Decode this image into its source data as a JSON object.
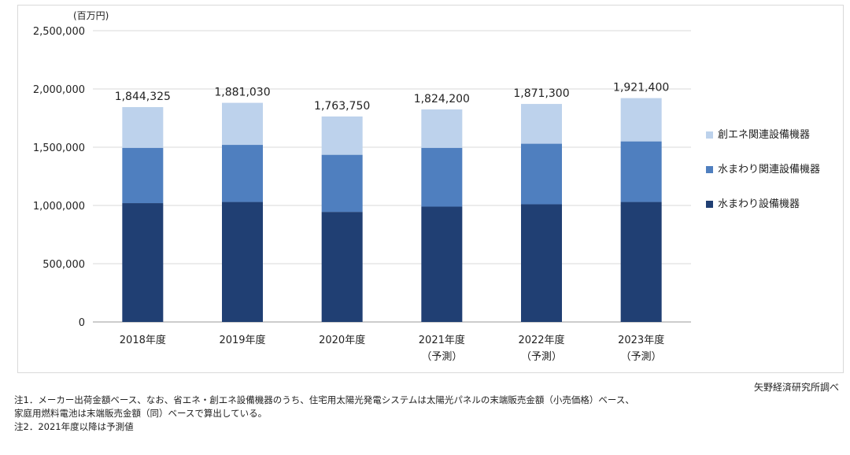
{
  "chart_data": {
    "type": "bar",
    "stacked": true,
    "unit_label": "(百万円)",
    "categories": [
      {
        "line1": "2018年度",
        "line2": ""
      },
      {
        "line1": "2019年度",
        "line2": ""
      },
      {
        "line1": "2020年度",
        "line2": ""
      },
      {
        "line1": "2021年度",
        "line2": "（予測）"
      },
      {
        "line1": "2022年度",
        "line2": "（予測）"
      },
      {
        "line1": "2023年度",
        "line2": "（予測）"
      }
    ],
    "series": [
      {
        "name": "水まわり設備機器",
        "color": "#203f73",
        "values": [
          1020000,
          1030000,
          945000,
          990000,
          1010000,
          1030000
        ]
      },
      {
        "name": "水まわり関連設備機器",
        "color": "#4f7fbf",
        "values": [
          475000,
          490000,
          490000,
          505000,
          520000,
          520000
        ]
      },
      {
        "name": "創エネ関連設備機器",
        "color": "#bdd2ec",
        "values": [
          349325,
          361030,
          328750,
          329200,
          341300,
          371400
        ]
      }
    ],
    "totals": [
      1844325,
      1881030,
      1763750,
      1824200,
      1871300,
      1921400
    ],
    "total_labels": [
      "1,844,325",
      "1,881,030",
      "1,763,750",
      "1,824,200",
      "1,871,300",
      "1,921,400"
    ],
    "ylim": [
      0,
      2500000
    ],
    "yticks": [
      0,
      500000,
      1000000,
      1500000,
      2000000,
      2500000
    ],
    "ytick_labels": [
      "0",
      "500,000",
      "1,000,000",
      "1,500,000",
      "2,000,000",
      "2,500,000"
    ],
    "grid": true,
    "legend_position": "right"
  },
  "source": "矢野経済研究所調べ",
  "notes": [
    "注1．メーカー出荷金額ベース、なお、省エネ・創エネ設備機器のうち、住宅用太陽光発電システムは太陽光パネルの末端販売金額（小売価格）ベース、",
    "家庭用燃料電池は末端販売金額（同）ベースで算出している。",
    "注2．2021年度以降は予測値"
  ]
}
